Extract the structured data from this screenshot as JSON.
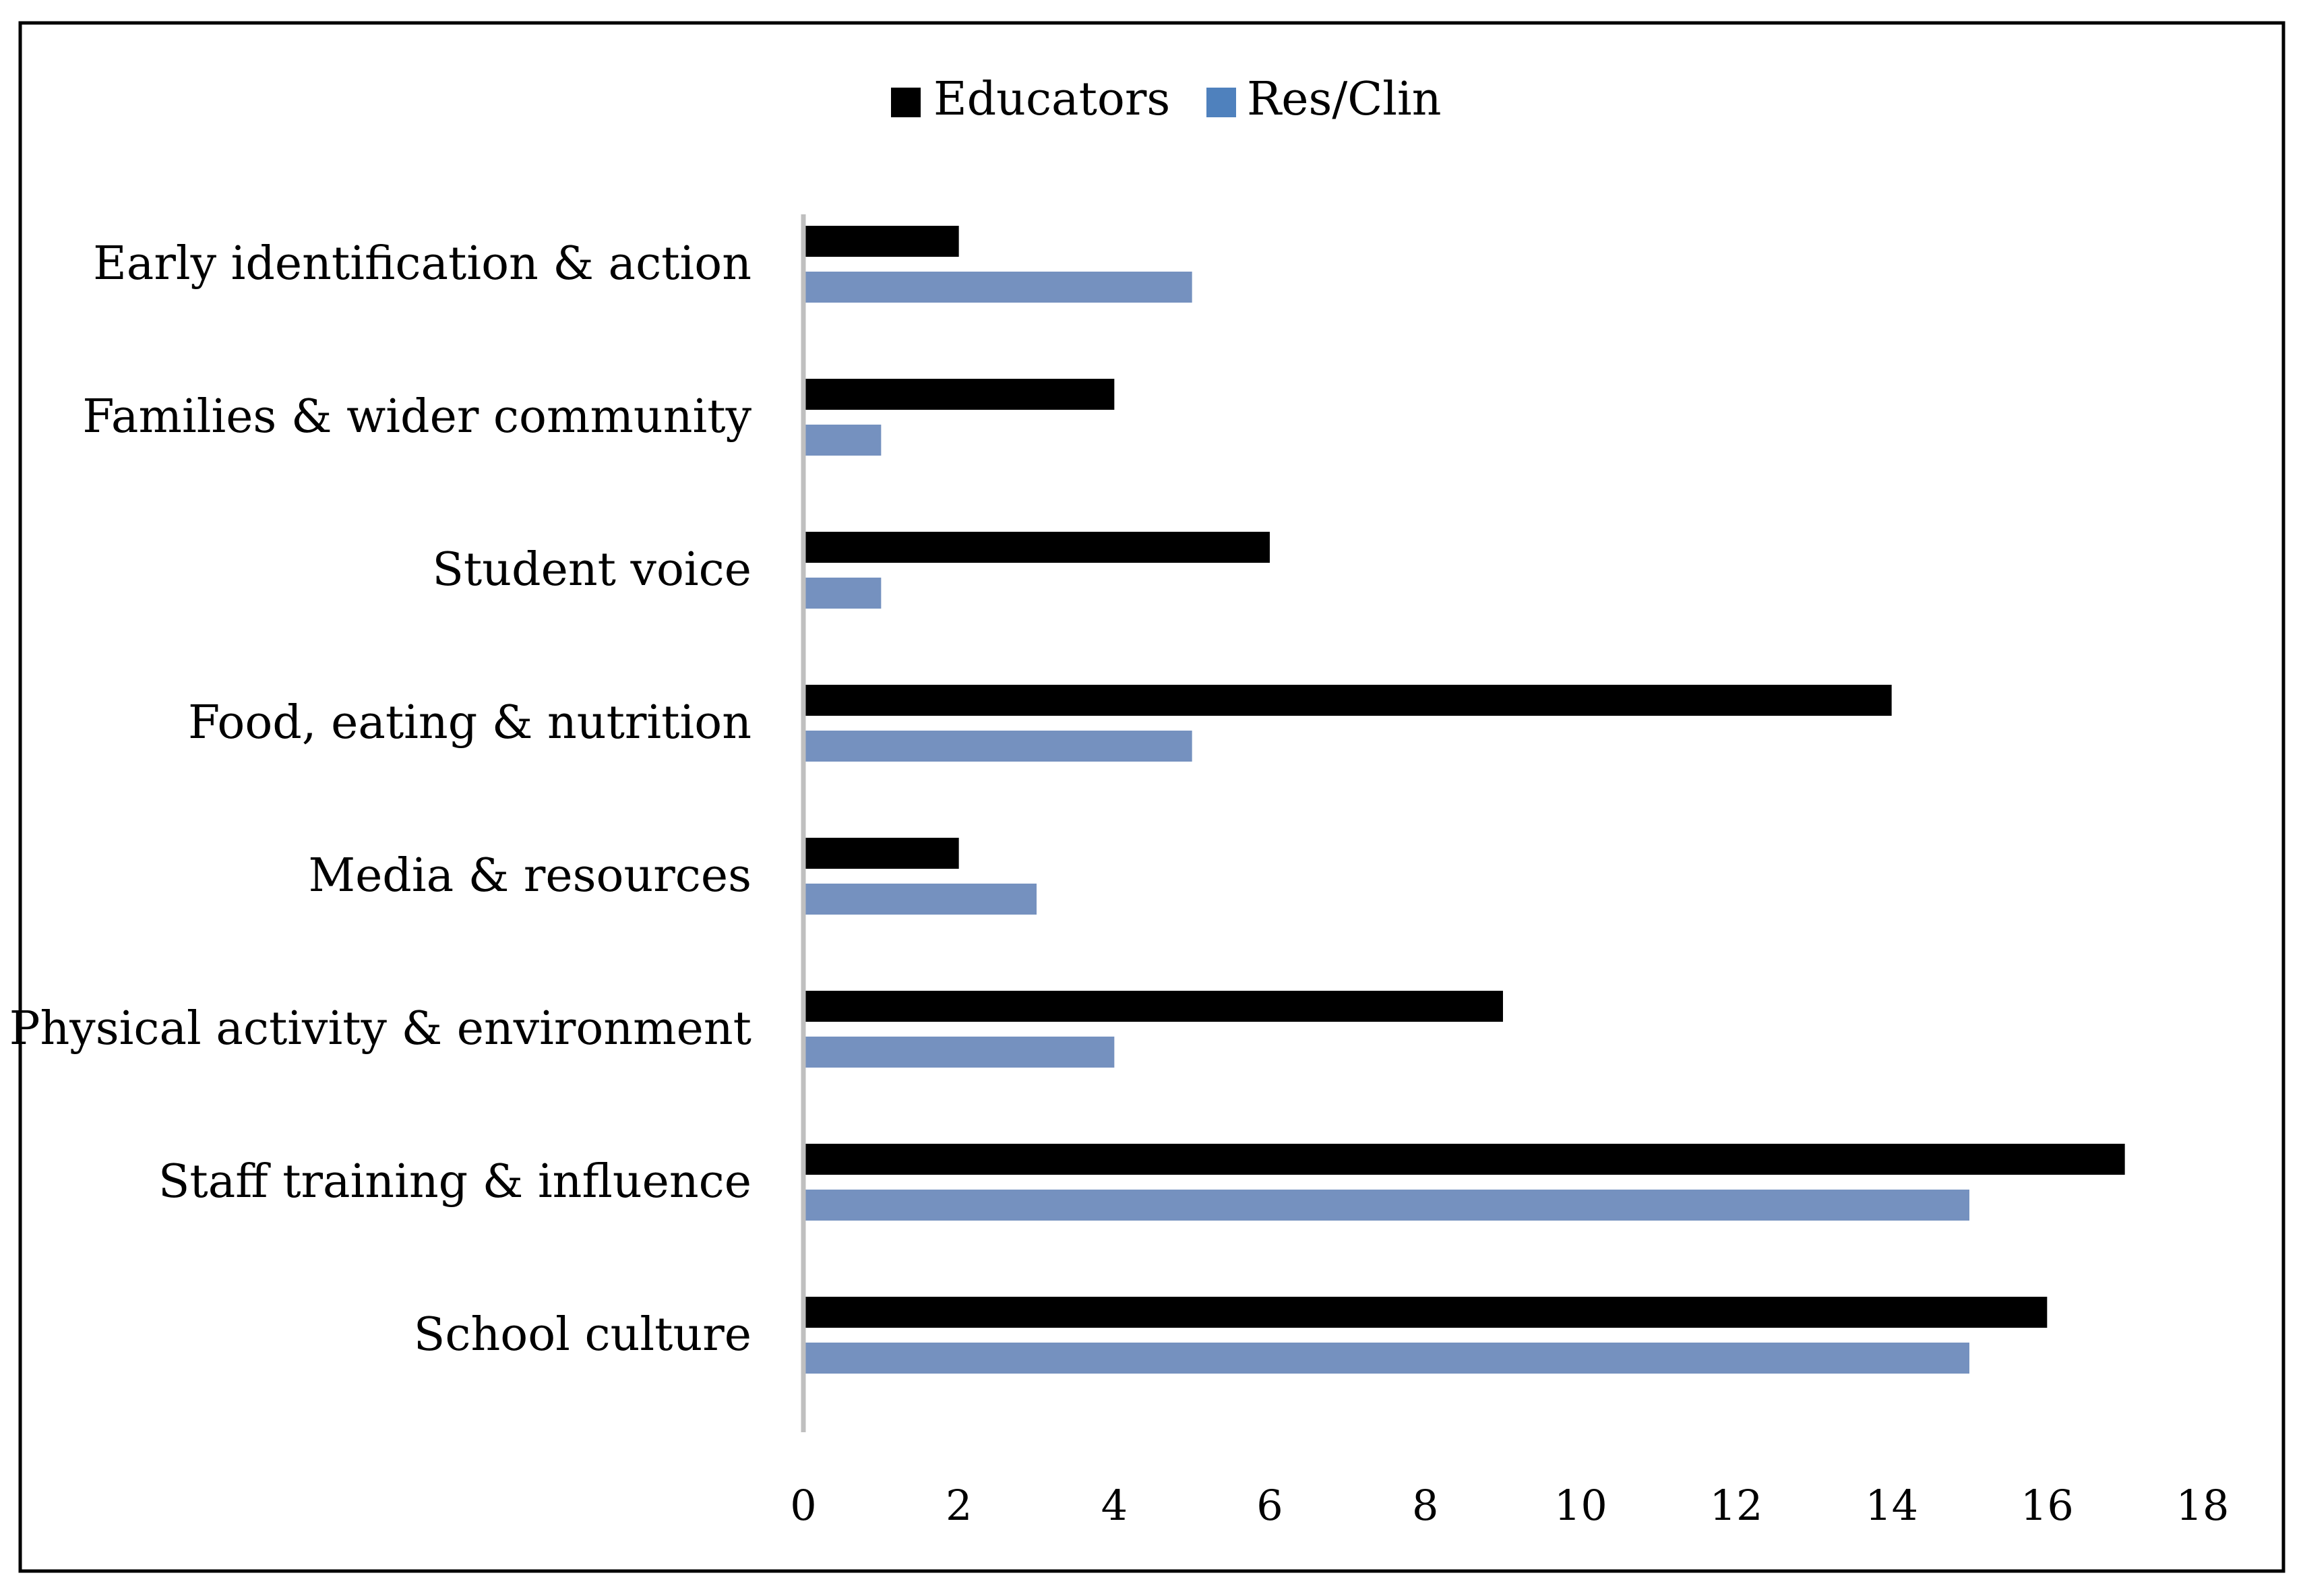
{
  "colors": {
    "educators": "#000000",
    "res_clin": "#7591bf",
    "res_clin_legend": "#4f81bd",
    "axis": "#bfbfbf"
  },
  "chart_data": {
    "type": "bar",
    "orientation": "horizontal",
    "title": "",
    "xlabel": "",
    "ylabel": "",
    "categories": [
      "Early identification & action",
      "Families & wider community",
      "Student voice",
      "Food, eating & nutrition",
      "Media & resources",
      "Physical activity & environment",
      "Staff training & influence",
      "School culture"
    ],
    "series": [
      {
        "name": "Educators",
        "values": [
          2,
          4,
          6,
          14,
          2,
          9,
          17,
          16
        ]
      },
      {
        "name": "Res/Clin",
        "values": [
          5,
          1,
          1,
          5,
          3,
          4,
          15,
          15
        ]
      }
    ],
    "xlim": [
      0,
      18
    ],
    "xticks": [
      "0",
      "2",
      "4",
      "6",
      "8",
      "10",
      "12",
      "14",
      "16",
      "18"
    ],
    "grid": false,
    "legend": "top-center"
  }
}
